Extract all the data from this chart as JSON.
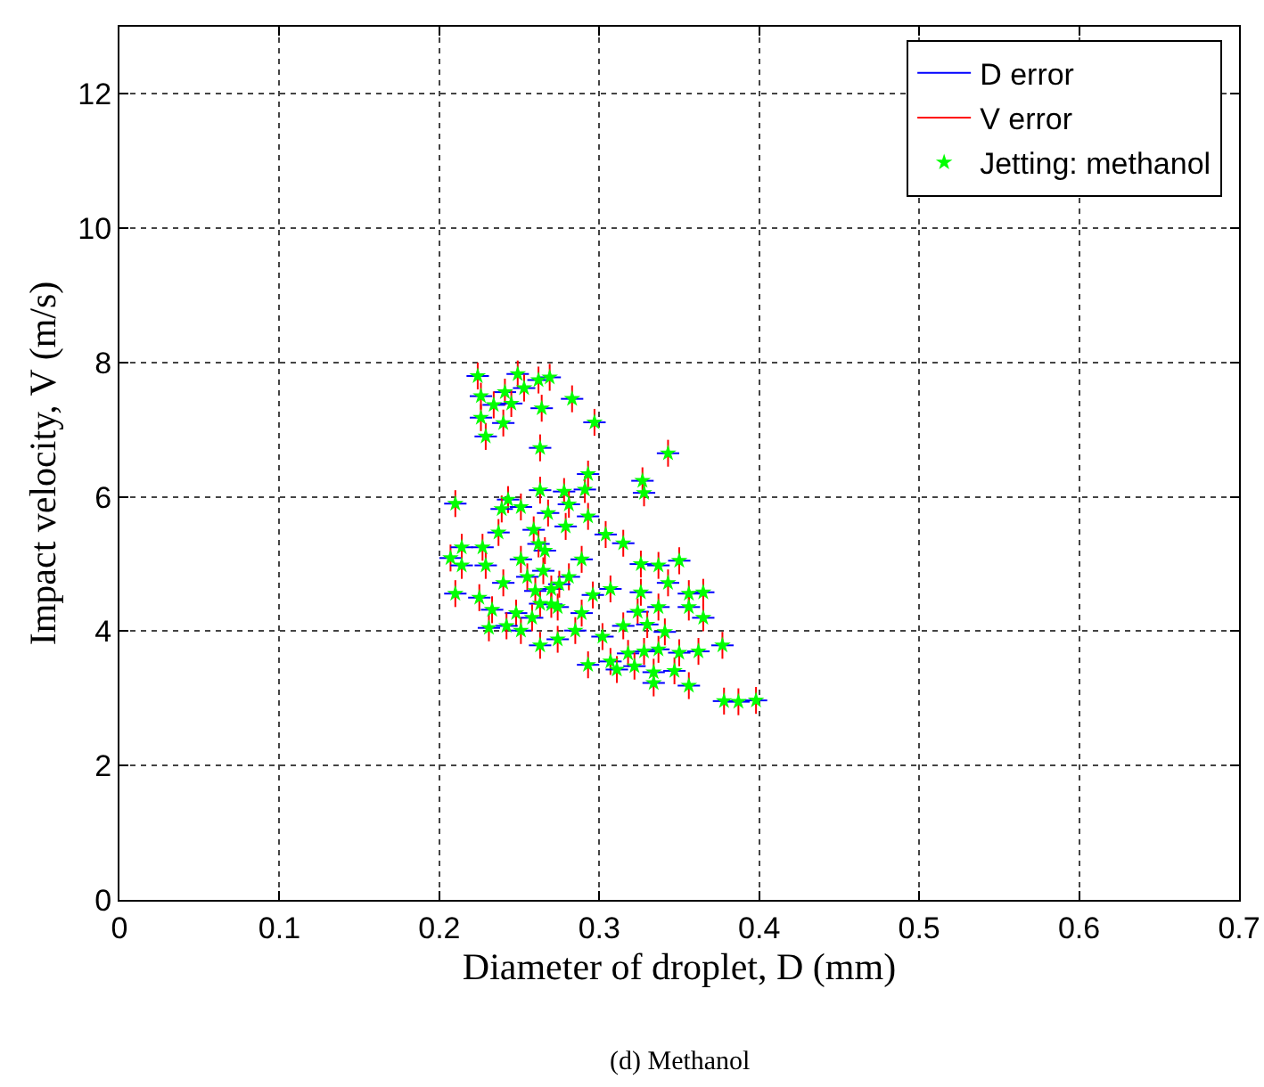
{
  "chart_data": {
    "type": "scatter",
    "xlabel": "Diameter of droplet, D (mm)",
    "ylabel": "Impact velocity, V (m/s)",
    "annotations": [
      "(d) Methanol"
    ],
    "xlim": [
      0,
      0.7
    ],
    "xticks": [
      0,
      0.1,
      0.2,
      0.3,
      0.4,
      0.5,
      0.6,
      0.7
    ],
    "ylim": [
      0,
      13
    ],
    "yticks": [
      0,
      2,
      4,
      6,
      8,
      10,
      12
    ],
    "grid": true,
    "legend": "top right",
    "x": [
      0.224,
      0.249,
      0.262,
      0.269,
      0.226,
      0.241,
      0.253,
      0.234,
      0.245,
      0.264,
      0.283,
      0.226,
      0.24,
      0.297,
      0.229,
      0.263,
      0.343,
      0.293,
      0.327,
      0.328,
      0.21,
      0.243,
      0.263,
      0.278,
      0.291,
      0.281,
      0.251,
      0.239,
      0.268,
      0.293,
      0.207,
      0.214,
      0.227,
      0.237,
      0.259,
      0.279,
      0.304,
      0.315,
      0.214,
      0.229,
      0.251,
      0.266,
      0.289,
      0.21,
      0.225,
      0.24,
      0.255,
      0.27,
      0.281,
      0.296,
      0.326,
      0.337,
      0.35,
      0.343,
      0.326,
      0.356,
      0.365,
      0.337,
      0.356,
      0.365,
      0.324,
      0.307,
      0.233,
      0.248,
      0.263,
      0.274,
      0.289,
      0.231,
      0.242,
      0.251,
      0.263,
      0.274,
      0.285,
      0.302,
      0.315,
      0.33,
      0.341,
      0.293,
      0.307,
      0.318,
      0.328,
      0.337,
      0.35,
      0.362,
      0.377,
      0.311,
      0.322,
      0.334,
      0.347,
      0.334,
      0.356,
      0.378,
      0.387,
      0.398,
      0.26,
      0.265,
      0.27,
      0.258,
      0.275,
      0.262
    ],
    "series": [
      {
        "name": "D error",
        "type": "line",
        "color": "#0000ff",
        "values": [
          null,
          null,
          null,
          null,
          null,
          null,
          null,
          null,
          null,
          null,
          null,
          null,
          null,
          null,
          null,
          null,
          null,
          null,
          null,
          null,
          null,
          null,
          null,
          null,
          null,
          null,
          null,
          null,
          null,
          null,
          null,
          null,
          null,
          null,
          null,
          null,
          null,
          null,
          null,
          null,
          null,
          null,
          null,
          null,
          null,
          null,
          null,
          null,
          null,
          null,
          null,
          null,
          null,
          null,
          null,
          null,
          null,
          null,
          null,
          null,
          null,
          null,
          null,
          null,
          null,
          null,
          null,
          null,
          null,
          null,
          null,
          null,
          null,
          null,
          null,
          null,
          null,
          null,
          null,
          null,
          null,
          null,
          null,
          null,
          null,
          null,
          null,
          null,
          null,
          null,
          null,
          null,
          null,
          null,
          null,
          null,
          null,
          null,
          null,
          null
        ]
      },
      {
        "name": "V error",
        "type": "line",
        "color": "#ff0000",
        "values": [
          null,
          null,
          null,
          null,
          null,
          null,
          null,
          null,
          null,
          null,
          null,
          null,
          null,
          null,
          null,
          null,
          null,
          null,
          null,
          null,
          null,
          null,
          null,
          null,
          null,
          null,
          null,
          null,
          null,
          null,
          null,
          null,
          null,
          null,
          null,
          null,
          null,
          null,
          null,
          null,
          null,
          null,
          null,
          null,
          null,
          null,
          null,
          null,
          null,
          null,
          null,
          null,
          null,
          null,
          null,
          null,
          null,
          null,
          null,
          null,
          null,
          null,
          null,
          null,
          null,
          null,
          null,
          null,
          null,
          null,
          null,
          null,
          null,
          null,
          null,
          null,
          null,
          null,
          null,
          null,
          null,
          null,
          null,
          null,
          null,
          null,
          null,
          null,
          null,
          null,
          null,
          null,
          null,
          null,
          null,
          null,
          null,
          null,
          null,
          null
        ]
      },
      {
        "name": "Jetting: methanol",
        "type": "scatter",
        "color": "#00ff00",
        "marker": "star",
        "values": [
          7.8,
          7.83,
          7.74,
          7.78,
          7.5,
          7.56,
          7.62,
          7.37,
          7.39,
          7.32,
          7.46,
          7.18,
          7.1,
          7.11,
          6.9,
          6.73,
          6.65,
          6.34,
          6.24,
          6.06,
          5.9,
          5.96,
          6.1,
          6.08,
          6.11,
          5.89,
          5.85,
          5.82,
          5.76,
          5.71,
          5.09,
          5.25,
          5.25,
          5.47,
          5.51,
          5.56,
          5.44,
          5.31,
          4.98,
          4.98,
          5.07,
          5.2,
          5.07,
          4.56,
          4.5,
          4.72,
          4.81,
          4.63,
          4.81,
          4.54,
          5.0,
          4.98,
          5.05,
          4.72,
          4.58,
          4.56,
          4.58,
          4.36,
          4.36,
          4.2,
          4.29,
          4.63,
          4.32,
          4.27,
          4.41,
          4.36,
          4.27,
          4.05,
          4.08,
          4.01,
          3.79,
          3.88,
          4.01,
          3.92,
          4.08,
          4.1,
          3.99,
          3.5,
          3.55,
          3.67,
          3.7,
          3.73,
          3.68,
          3.7,
          3.79,
          3.43,
          3.48,
          3.39,
          3.41,
          3.23,
          3.19,
          2.96,
          2.95,
          2.97,
          4.6,
          4.9,
          4.4,
          4.2,
          4.7,
          5.3
        ],
        "xerrors": [
          0.007,
          0.007,
          0.007,
          0.007,
          0.007,
          0.007,
          0.007,
          0.007,
          0.007,
          0.007,
          0.007,
          0.007,
          0.007,
          0.007,
          0.007,
          0.007,
          0.007,
          0.007,
          0.007,
          0.007,
          0.007,
          0.007,
          0.007,
          0.007,
          0.007,
          0.007,
          0.007,
          0.007,
          0.007,
          0.007,
          0.007,
          0.007,
          0.007,
          0.007,
          0.007,
          0.007,
          0.007,
          0.007,
          0.007,
          0.007,
          0.007,
          0.007,
          0.007,
          0.007,
          0.007,
          0.007,
          0.007,
          0.007,
          0.007,
          0.007,
          0.007,
          0.007,
          0.007,
          0.007,
          0.007,
          0.007,
          0.007,
          0.007,
          0.007,
          0.007,
          0.007,
          0.007,
          0.007,
          0.007,
          0.007,
          0.007,
          0.007,
          0.007,
          0.007,
          0.007,
          0.007,
          0.007,
          0.007,
          0.007,
          0.007,
          0.007,
          0.007,
          0.007,
          0.007,
          0.007,
          0.007,
          0.007,
          0.007,
          0.007,
          0.007,
          0.007,
          0.007,
          0.007,
          0.007,
          0.007,
          0.007,
          0.007,
          0.007,
          0.007,
          0.007,
          0.007,
          0.007,
          0.007,
          0.007,
          0.007
        ],
        "errors": [
          0.2,
          0.2,
          0.2,
          0.2,
          0.2,
          0.2,
          0.2,
          0.2,
          0.2,
          0.2,
          0.2,
          0.2,
          0.2,
          0.2,
          0.2,
          0.2,
          0.2,
          0.2,
          0.2,
          0.2,
          0.2,
          0.2,
          0.2,
          0.2,
          0.2,
          0.2,
          0.2,
          0.2,
          0.2,
          0.2,
          0.2,
          0.2,
          0.2,
          0.2,
          0.2,
          0.2,
          0.2,
          0.2,
          0.2,
          0.2,
          0.2,
          0.2,
          0.2,
          0.2,
          0.2,
          0.2,
          0.2,
          0.2,
          0.2,
          0.2,
          0.2,
          0.2,
          0.2,
          0.2,
          0.2,
          0.2,
          0.2,
          0.2,
          0.2,
          0.2,
          0.2,
          0.2,
          0.2,
          0.2,
          0.2,
          0.2,
          0.2,
          0.2,
          0.2,
          0.2,
          0.2,
          0.2,
          0.2,
          0.2,
          0.2,
          0.2,
          0.2,
          0.2,
          0.2,
          0.2,
          0.2,
          0.2,
          0.2,
          0.2,
          0.2,
          0.2,
          0.2,
          0.2,
          0.2,
          0.2,
          0.2,
          0.2,
          0.2,
          0.2,
          0.2,
          0.2,
          0.2,
          0.2,
          0.2,
          0.2
        ]
      }
    ]
  }
}
